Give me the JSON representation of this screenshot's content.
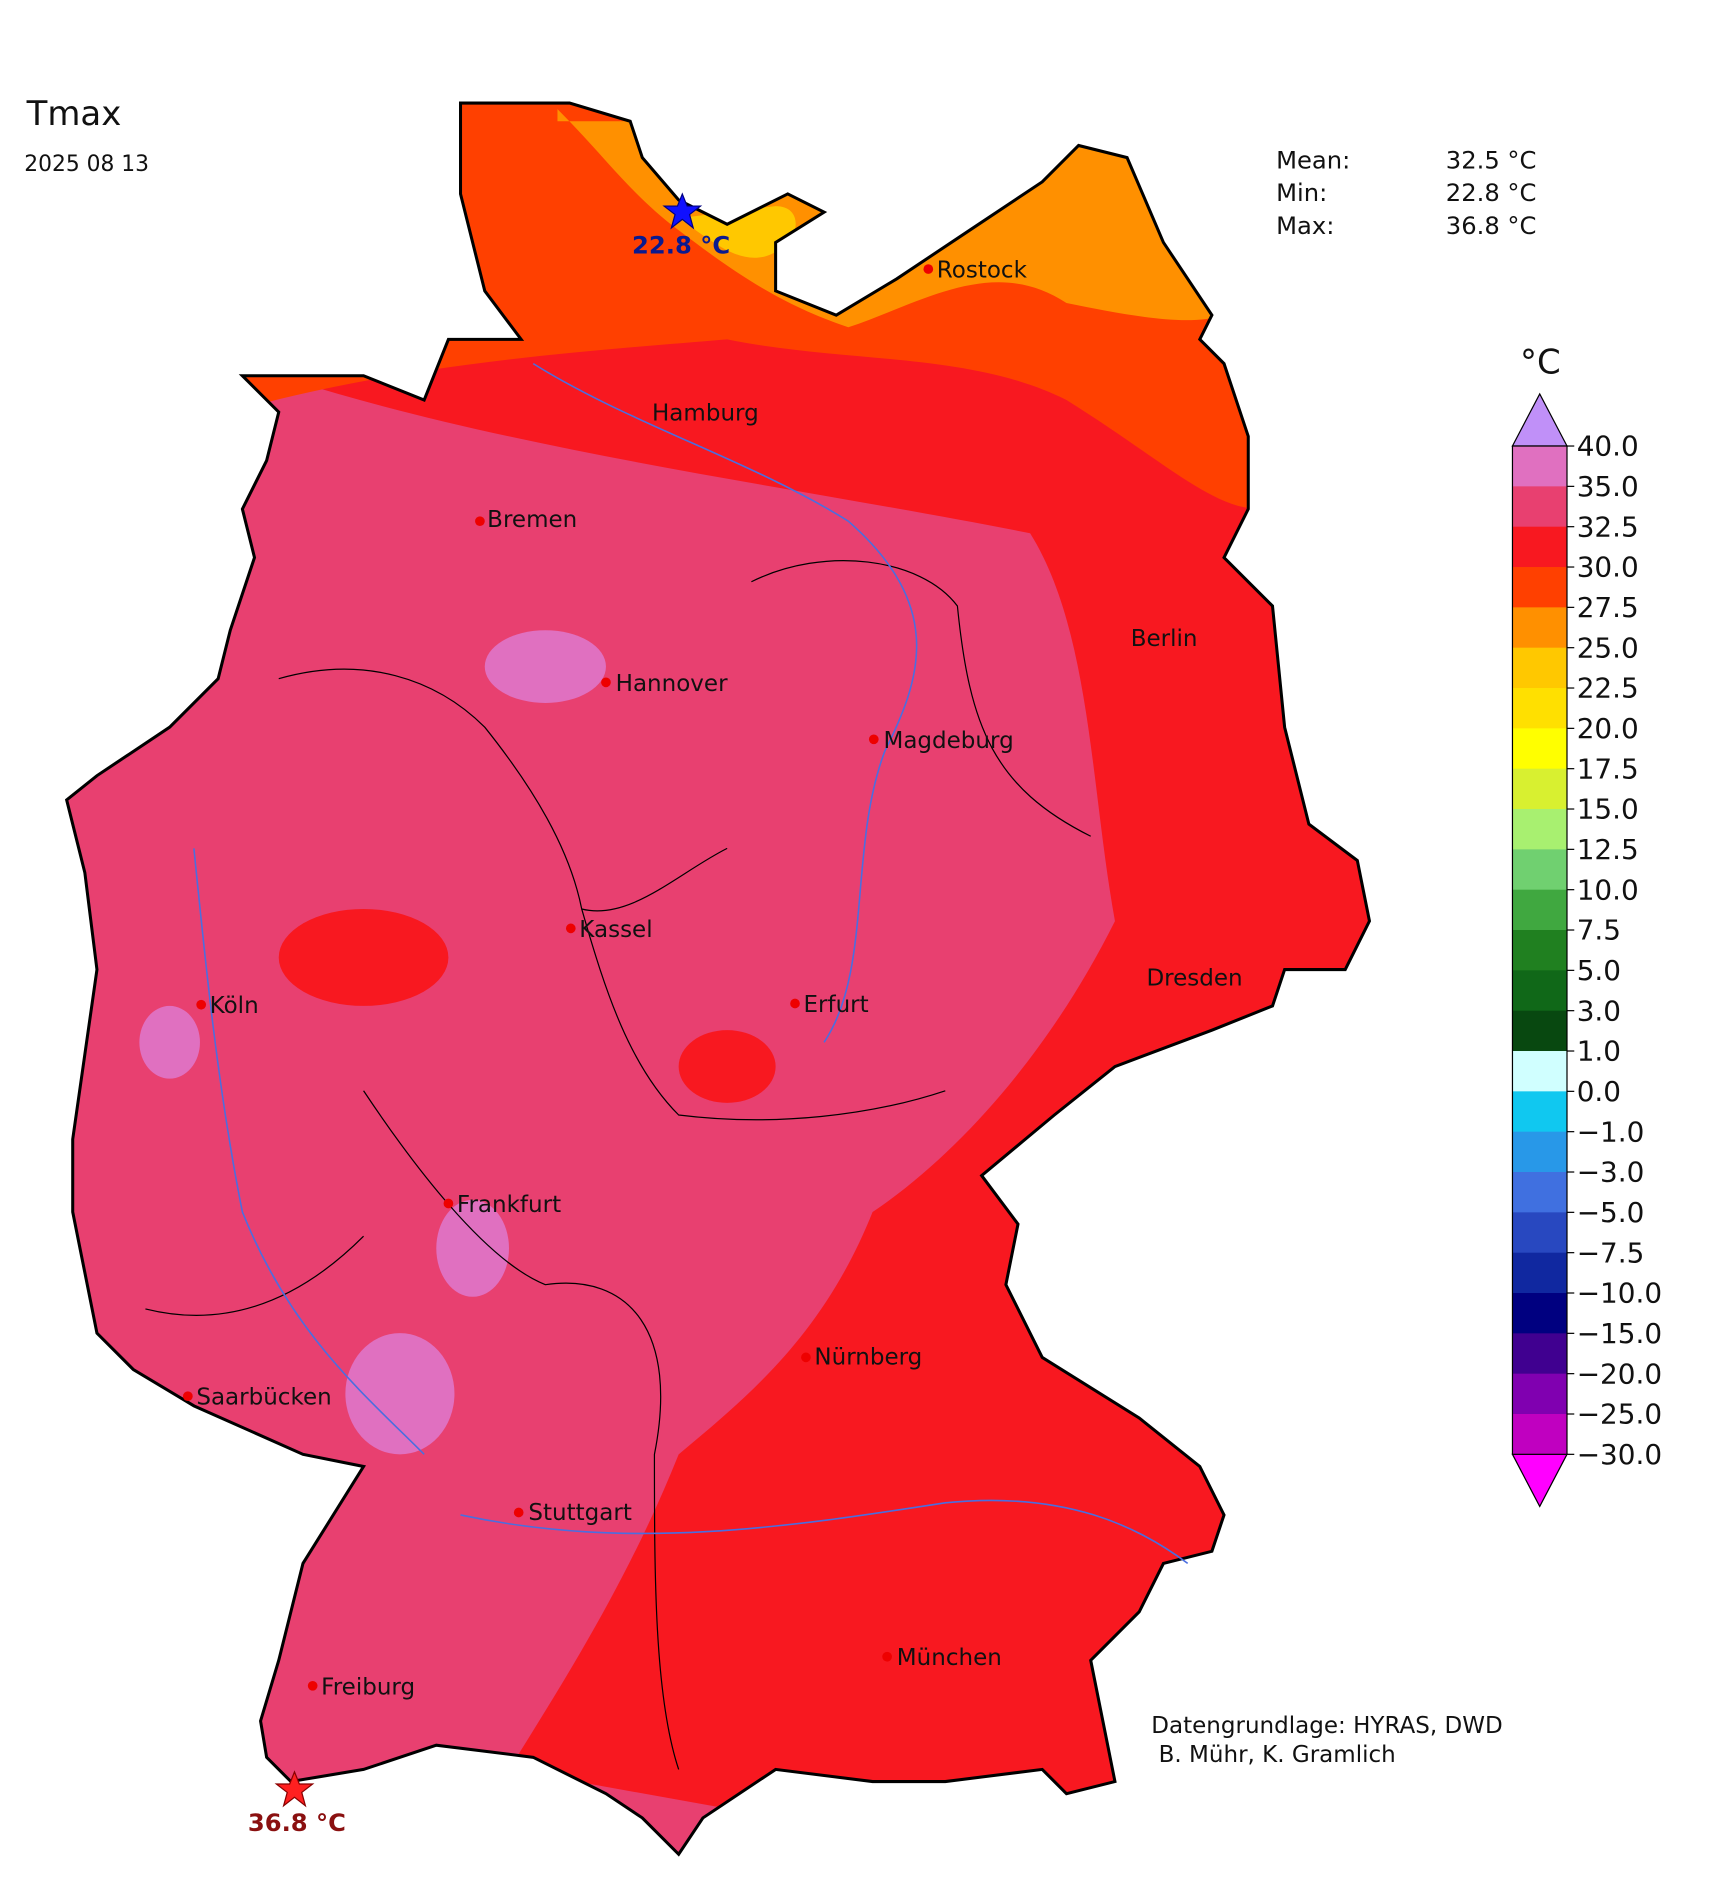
{
  "title": "Tmax",
  "date": "2025 08 13",
  "stats": [
    {
      "label": "Mean:",
      "value": "32.5 °C"
    },
    {
      "label": "Min:",
      "value": "22.8 °C"
    },
    {
      "label": "Max:",
      "value": "36.8 °C"
    }
  ],
  "markers": {
    "min": "22.8 °C",
    "max": "36.8 °C"
  },
  "cities": [
    "Rostock",
    "Hamburg",
    "Bremen",
    "Berlin",
    "Hannover",
    "Magdeburg",
    "Kassel",
    "Dresden",
    "Köln",
    "Erfurt",
    "Frankfurt",
    "Nürnberg",
    "Saarbücken",
    "Stuttgart",
    "München",
    "Freiburg"
  ],
  "colorbar": {
    "unit": "°C",
    "labels": [
      "40.0",
      "35.0",
      "32.5",
      "30.0",
      "27.5",
      "25.0",
      "22.5",
      "20.0",
      "17.5",
      "15.0",
      "12.5",
      "10.0",
      "7.5",
      "5.0",
      "3.0",
      "1.0",
      "0.0",
      "−1.0",
      "−3.0",
      "−5.0",
      "−7.5",
      "−10.0",
      "−15.0",
      "−20.0",
      "−25.0",
      "−30.0"
    ],
    "colors": [
      "#e070c0",
      "#e84070",
      "#f81820",
      "#ff4000",
      "#ff9000",
      "#ffc800",
      "#ffe000",
      "#ffff00",
      "#d8f030",
      "#a8f070",
      "#70d070",
      "#40a840",
      "#208020",
      "#106818",
      "#084810",
      "#d0ffff",
      "#10c8f0",
      "#2898e8",
      "#4070e0",
      "#2848c0",
      "#1028a0",
      "#000080",
      "#400090",
      "#8000b0",
      "#c000c0"
    ],
    "extend_colors": [
      "#c090f8",
      "#ff00ff"
    ]
  },
  "credits": [
    "Datengrundlage: HYRAS, DWD",
    " B. Mühr, K. Gramlich"
  ]
}
